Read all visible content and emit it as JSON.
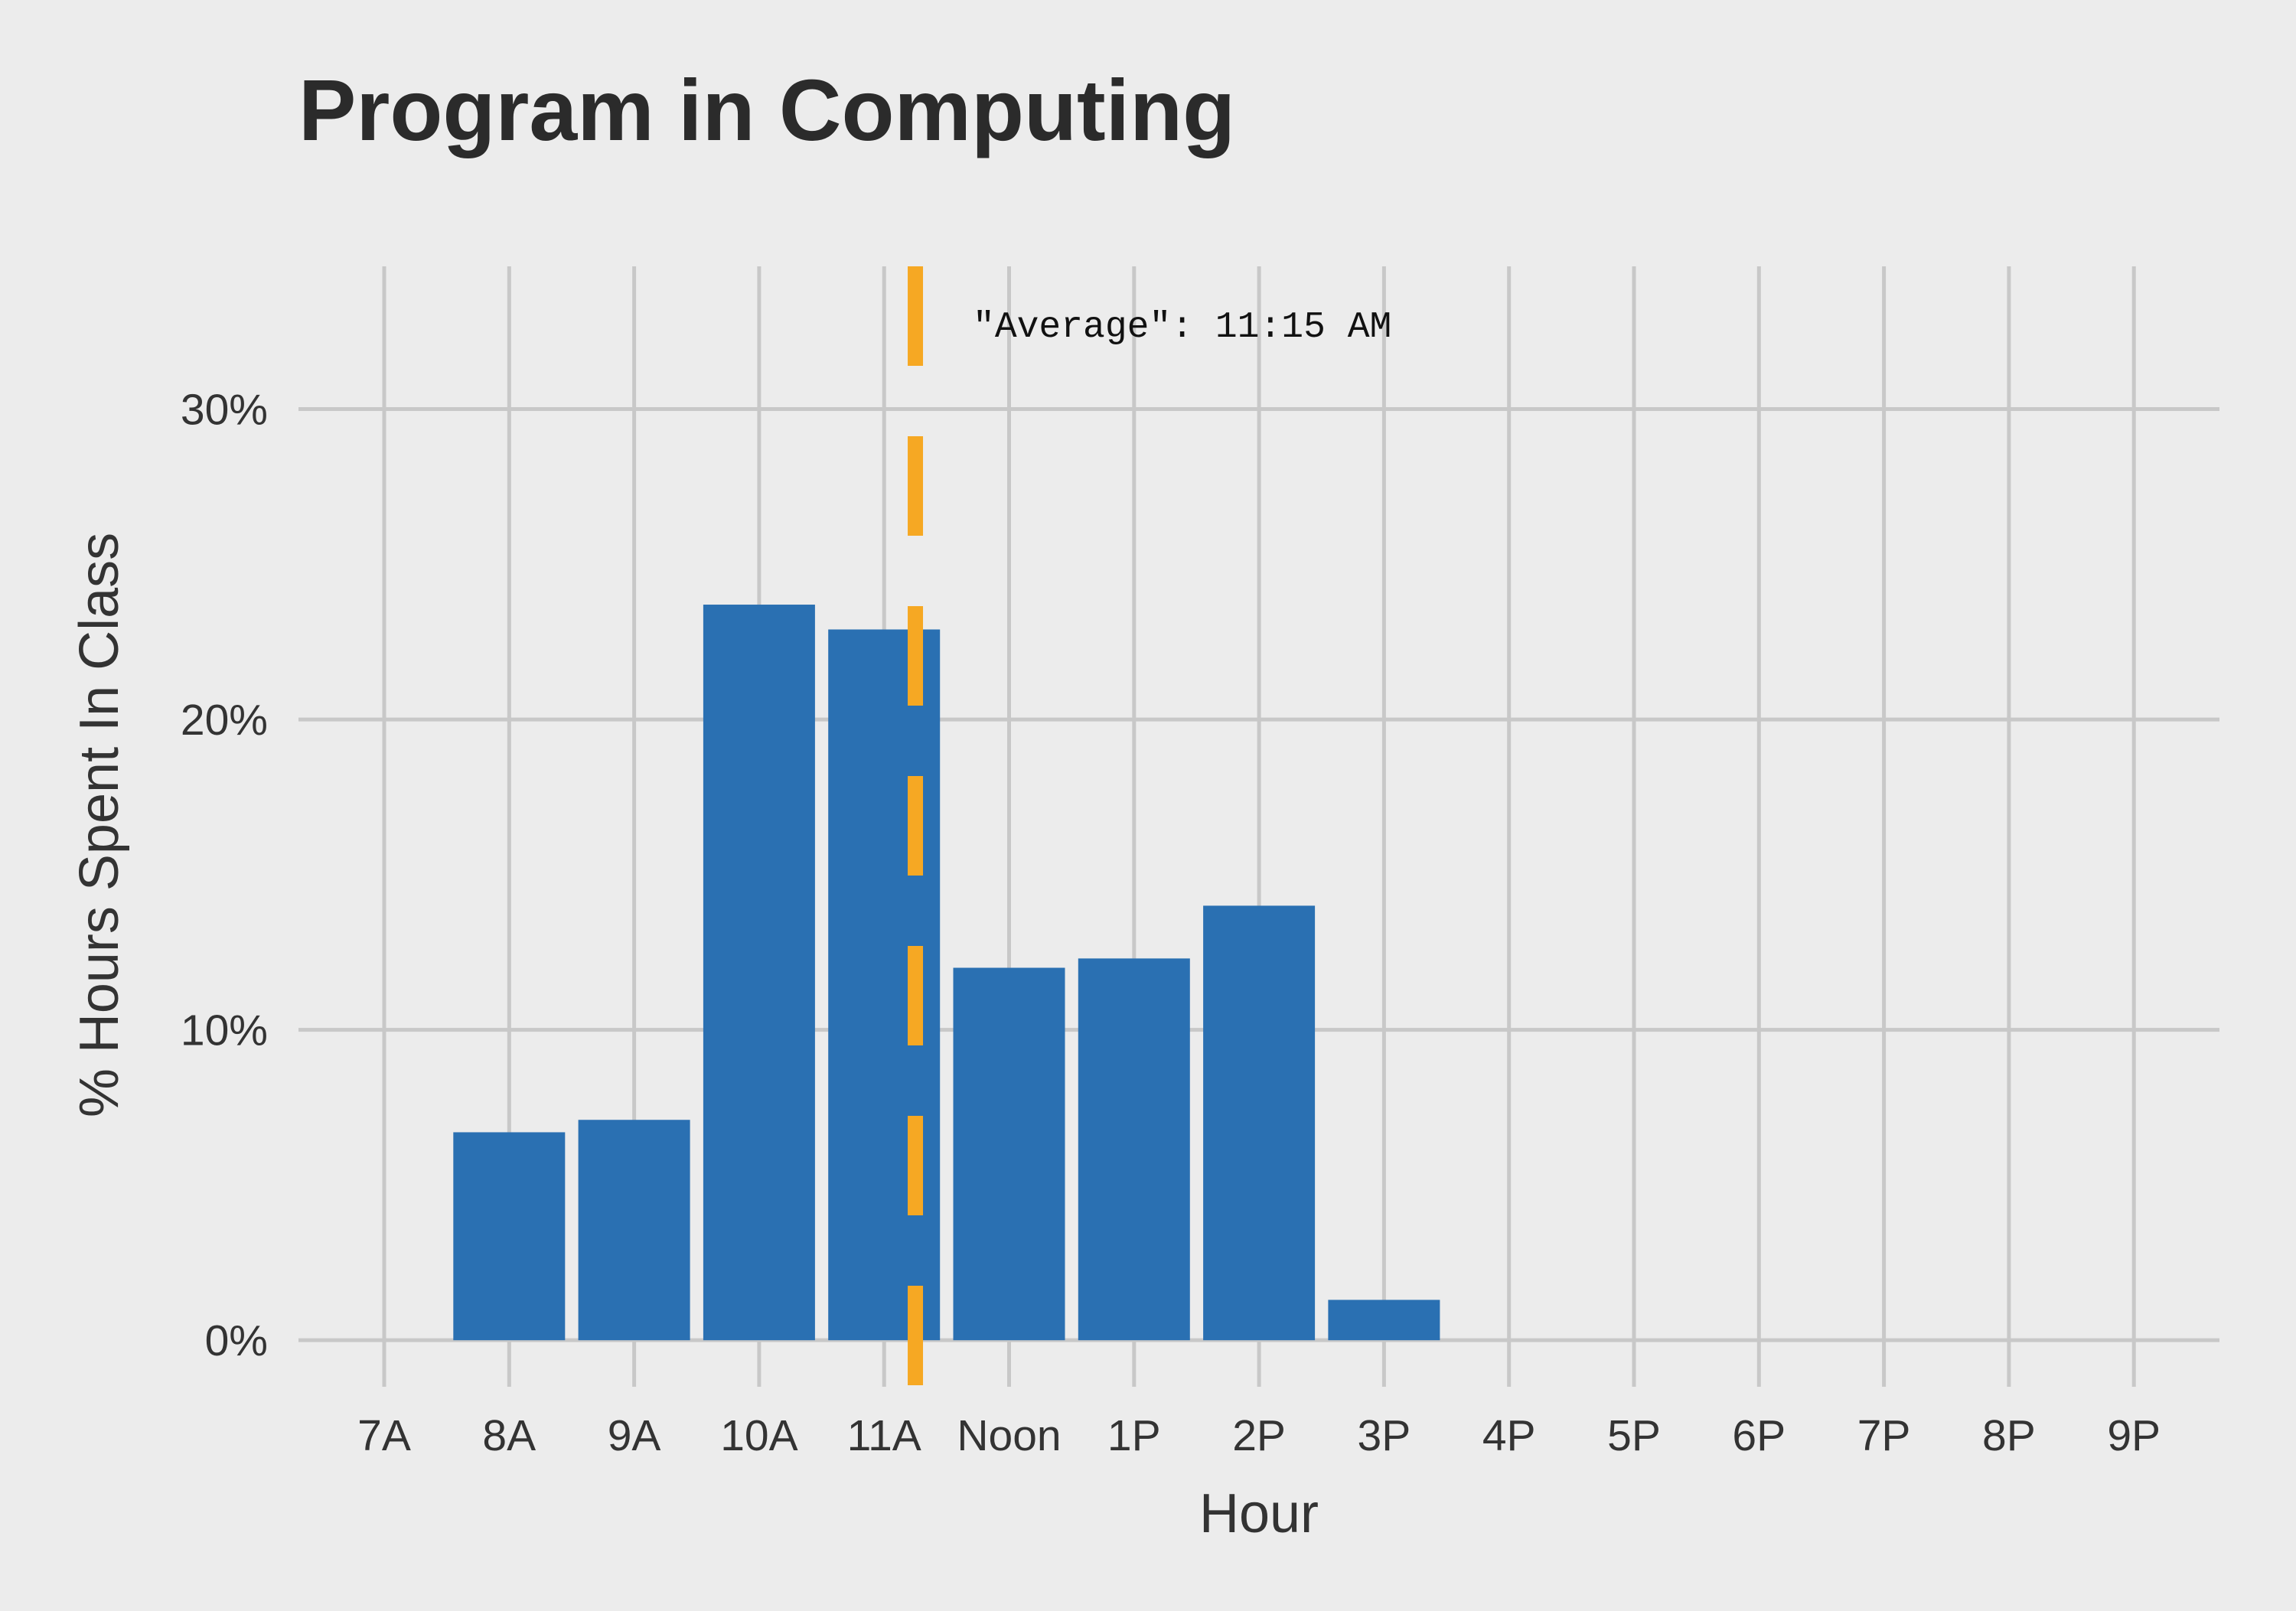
{
  "chart_data": {
    "type": "bar",
    "title": "Program in Computing",
    "xlabel": "Hour",
    "ylabel": "% Hours Spent In Class",
    "categories": [
      "7A",
      "8A",
      "9A",
      "10A",
      "11A",
      "Noon",
      "1P",
      "2P",
      "3P",
      "4P",
      "5P",
      "6P",
      "7P",
      "8P",
      "9P"
    ],
    "values": [
      0,
      6.7,
      7.1,
      23.7,
      22.9,
      12.0,
      12.3,
      14.0,
      1.3,
      0,
      0,
      0,
      0,
      0,
      0
    ],
    "y_ticks": [
      0,
      10,
      20,
      30
    ],
    "y_tick_labels": [
      "0%",
      "10%",
      "20%",
      "30%"
    ],
    "ylim": [
      -1.5,
      34.6
    ],
    "grid": true,
    "bar_color": "#2a70b2",
    "average": {
      "hour_position": 4.25,
      "label": "\"Average\": 11:15 AM",
      "color": "#f6a823",
      "style": "dashed"
    }
  }
}
